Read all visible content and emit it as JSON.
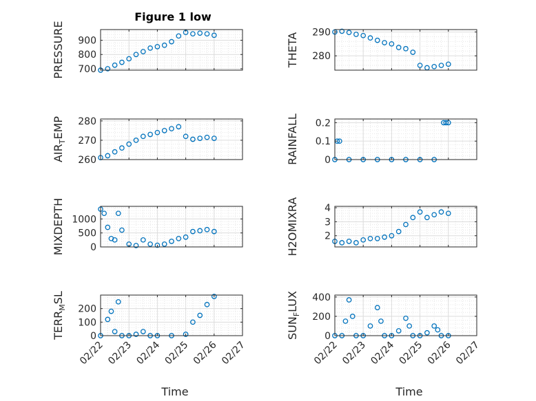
{
  "chart_data": [
    {
      "type": "scatter",
      "title": "Figure 1 low",
      "ylabel": "PRESSURE",
      "xlabel": "",
      "xlim": [
        "02/22",
        "02/27"
      ],
      "ylim": [
        690,
        975
      ],
      "yticks": [
        700,
        800,
        900
      ],
      "grid": true,
      "x": [
        "2024-02-22 00:00",
        "2024-02-22 06:00",
        "2024-02-22 12:00",
        "2024-02-22 18:00",
        "2024-02-23 00:00",
        "2024-02-23 06:00",
        "2024-02-23 12:00",
        "2024-02-23 18:00",
        "2024-02-24 00:00",
        "2024-02-24 06:00",
        "2024-02-24 12:00",
        "2024-02-24 18:00",
        "2024-02-25 00:00",
        "2024-02-25 06:00",
        "2024-02-25 12:00",
        "2024-02-25 18:00",
        "2024-02-26 00:00"
      ],
      "values": [
        690,
        700,
        725,
        745,
        770,
        800,
        820,
        845,
        855,
        865,
        890,
        930,
        955,
        945,
        950,
        945,
        935
      ]
    },
    {
      "type": "scatter",
      "ylabel": "THETA",
      "xlabel": "",
      "xlim": [
        "02/22",
        "02/27"
      ],
      "ylim": [
        274,
        291
      ],
      "yticks": [
        280,
        290
      ],
      "grid": true,
      "x": [
        "2024-02-22 00:00",
        "2024-02-22 06:00",
        "2024-02-22 12:00",
        "2024-02-22 18:00",
        "2024-02-23 00:00",
        "2024-02-23 06:00",
        "2024-02-23 12:00",
        "2024-02-23 18:00",
        "2024-02-24 00:00",
        "2024-02-24 06:00",
        "2024-02-24 12:00",
        "2024-02-24 18:00",
        "2024-02-25 00:00",
        "2024-02-25 06:00",
        "2024-02-25 12:00",
        "2024-02-25 18:00",
        "2024-02-26 00:00"
      ],
      "values": [
        290,
        290.3,
        289.8,
        289,
        288.5,
        287.5,
        286.5,
        285.5,
        285,
        283.5,
        283,
        281.5,
        276,
        275,
        275.5,
        276,
        276.5
      ]
    },
    {
      "type": "scatter",
      "ylabel": "AIR_TEMP",
      "xlabel": "",
      "xlim": [
        "02/22",
        "02/27"
      ],
      "ylim": [
        260,
        281
      ],
      "yticks": [
        260,
        270,
        280
      ],
      "grid": true,
      "x": [
        "2024-02-22 00:00",
        "2024-02-22 06:00",
        "2024-02-22 12:00",
        "2024-02-22 18:00",
        "2024-02-23 00:00",
        "2024-02-23 06:00",
        "2024-02-23 12:00",
        "2024-02-23 18:00",
        "2024-02-24 00:00",
        "2024-02-24 06:00",
        "2024-02-24 12:00",
        "2024-02-24 18:00",
        "2024-02-25 00:00",
        "2024-02-25 06:00",
        "2024-02-25 12:00",
        "2024-02-25 18:00",
        "2024-02-26 00:00"
      ],
      "values": [
        261,
        262,
        264,
        266,
        268,
        270,
        272,
        273,
        274,
        275,
        276,
        277,
        272,
        270.5,
        271,
        271.5,
        271
      ]
    },
    {
      "type": "scatter",
      "ylabel": "RAINFALL",
      "xlabel": "",
      "xlim": [
        "02/22",
        "02/27"
      ],
      "ylim": [
        0,
        0.22
      ],
      "yticks": [
        0,
        0.1,
        0.2
      ],
      "grid": true,
      "x": [
        "2024-02-22 00:00",
        "2024-02-22 02:00",
        "2024-02-22 04:00",
        "2024-02-22 12:00",
        "2024-02-23 00:00",
        "2024-02-23 12:00",
        "2024-02-24 00:00",
        "2024-02-24 12:00",
        "2024-02-25 00:00",
        "2024-02-25 12:00",
        "2024-02-25 20:00",
        "2024-02-25 22:00",
        "2024-02-26 00:00"
      ],
      "values": [
        0,
        0.1,
        0.1,
        0,
        0,
        0,
        0,
        0,
        0,
        0,
        0.2,
        0.2,
        0.2
      ]
    },
    {
      "type": "scatter",
      "ylabel": "MIXDEPTH",
      "xlabel": "",
      "xlim": [
        "02/22",
        "02/27"
      ],
      "ylim": [
        0,
        1450
      ],
      "yticks": [
        0,
        500,
        1000
      ],
      "grid": true,
      "x": [
        "2024-02-22 00:00",
        "2024-02-22 03:00",
        "2024-02-22 06:00",
        "2024-02-22 09:00",
        "2024-02-22 12:00",
        "2024-02-22 15:00",
        "2024-02-22 18:00",
        "2024-02-23 00:00",
        "2024-02-23 06:00",
        "2024-02-23 12:00",
        "2024-02-23 18:00",
        "2024-02-24 00:00",
        "2024-02-24 06:00",
        "2024-02-24 12:00",
        "2024-02-24 18:00",
        "2024-02-25 00:00",
        "2024-02-25 06:00",
        "2024-02-25 12:00",
        "2024-02-25 18:00",
        "2024-02-26 00:00"
      ],
      "values": [
        1350,
        1200,
        700,
        300,
        250,
        1200,
        600,
        100,
        50,
        250,
        100,
        60,
        100,
        200,
        300,
        350,
        550,
        580,
        620,
        550
      ]
    },
    {
      "type": "scatter",
      "ylabel": "H2OMIXRA",
      "xlabel": "",
      "xlim": [
        "02/22",
        "02/27"
      ],
      "ylim": [
        1.2,
        4.1
      ],
      "yticks": [
        2,
        3,
        4
      ],
      "grid": true,
      "x": [
        "2024-02-22 00:00",
        "2024-02-22 06:00",
        "2024-02-22 12:00",
        "2024-02-22 18:00",
        "2024-02-23 00:00",
        "2024-02-23 06:00",
        "2024-02-23 12:00",
        "2024-02-23 18:00",
        "2024-02-24 00:00",
        "2024-02-24 06:00",
        "2024-02-24 12:00",
        "2024-02-24 18:00",
        "2024-02-25 00:00",
        "2024-02-25 06:00",
        "2024-02-25 12:00",
        "2024-02-25 18:00",
        "2024-02-26 00:00"
      ],
      "values": [
        1.6,
        1.5,
        1.6,
        1.5,
        1.7,
        1.8,
        1.8,
        1.9,
        2.0,
        2.3,
        2.8,
        3.3,
        3.7,
        3.3,
        3.5,
        3.7,
        3.6
      ]
    },
    {
      "type": "scatter",
      "ylabel": "TERR_MSL",
      "xlabel": "Time",
      "xlim": [
        "02/22",
        "02/27"
      ],
      "xticks": [
        "02/22",
        "02/23",
        "02/24",
        "02/25",
        "02/26",
        "02/27"
      ],
      "ylim": [
        0,
        300
      ],
      "yticks": [
        0,
        100,
        200
      ],
      "grid": true,
      "x": [
        "2024-02-22 00:00",
        "2024-02-22 06:00",
        "2024-02-22 09:00",
        "2024-02-22 12:00",
        "2024-02-22 15:00",
        "2024-02-22 18:00",
        "2024-02-23 00:00",
        "2024-02-23 06:00",
        "2024-02-23 12:00",
        "2024-02-23 18:00",
        "2024-02-24 00:00",
        "2024-02-24 12:00",
        "2024-02-25 00:00",
        "2024-02-25 06:00",
        "2024-02-25 12:00",
        "2024-02-25 18:00",
        "2024-02-26 00:00"
      ],
      "values": [
        0,
        120,
        180,
        30,
        250,
        0,
        0,
        10,
        30,
        0,
        0,
        0,
        10,
        100,
        150,
        230,
        290
      ]
    },
    {
      "type": "scatter",
      "ylabel": "SUN_FLUX",
      "xlabel": "Time",
      "xlim": [
        "02/22",
        "02/27"
      ],
      "xticks": [
        "02/22",
        "02/23",
        "02/24",
        "02/25",
        "02/26",
        "02/27"
      ],
      "ylim": [
        0,
        420
      ],
      "yticks": [
        0,
        200,
        400
      ],
      "grid": true,
      "x": [
        "2024-02-22 00:00",
        "2024-02-22 06:00",
        "2024-02-22 09:00",
        "2024-02-22 12:00",
        "2024-02-22 15:00",
        "2024-02-22 18:00",
        "2024-02-23 00:00",
        "2024-02-23 06:00",
        "2024-02-23 12:00",
        "2024-02-23 15:00",
        "2024-02-23 18:00",
        "2024-02-24 00:00",
        "2024-02-24 06:00",
        "2024-02-24 12:00",
        "2024-02-24 15:00",
        "2024-02-24 18:00",
        "2024-02-25 00:00",
        "2024-02-25 06:00",
        "2024-02-25 12:00",
        "2024-02-25 15:00",
        "2024-02-25 18:00",
        "2024-02-26 00:00"
      ],
      "values": [
        0,
        0,
        150,
        370,
        200,
        0,
        0,
        100,
        290,
        150,
        0,
        0,
        50,
        180,
        100,
        0,
        0,
        30,
        100,
        60,
        0,
        0
      ]
    }
  ],
  "colors": {
    "marker": "#0072bd",
    "grid": "#e6e6e6",
    "axis": "#262626"
  }
}
